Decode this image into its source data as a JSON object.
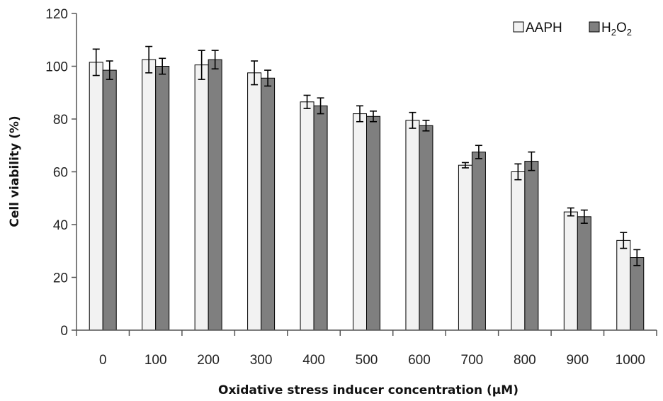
{
  "chart_data": {
    "type": "bar",
    "title": "",
    "xlabel": "Oxidative stress inducer concentration (μM)",
    "ylabel": "Cell viability (%)",
    "ylim": [
      0,
      120
    ],
    "yticks": [
      0,
      20,
      40,
      60,
      80,
      100,
      120
    ],
    "grid": false,
    "legend_position": "top-right",
    "categories": [
      "0",
      "100",
      "200",
      "300",
      "400",
      "500",
      "600",
      "700",
      "800",
      "900",
      "1000"
    ],
    "series": [
      {
        "name": "AAPH",
        "color": "#f2f2f2",
        "values": [
          101.5,
          102.5,
          100.5,
          97.5,
          86.5,
          82,
          79.5,
          62.5,
          60,
          44.8,
          34
        ],
        "errors": [
          5,
          5,
          5.5,
          4.5,
          2.5,
          3,
          3,
          1,
          3,
          1.5,
          3
        ]
      },
      {
        "name": "H",
        "name_sub1": "2",
        "name_mid": "O",
        "name_sub2": "2",
        "color": "#7f7f7f",
        "values": [
          98.5,
          100,
          102.5,
          95.5,
          85,
          81,
          77.5,
          67.5,
          64,
          43,
          27.5
        ],
        "errors": [
          3.5,
          3,
          3.5,
          3,
          3,
          2,
          2,
          2.5,
          3.5,
          2.5,
          3
        ]
      }
    ]
  }
}
